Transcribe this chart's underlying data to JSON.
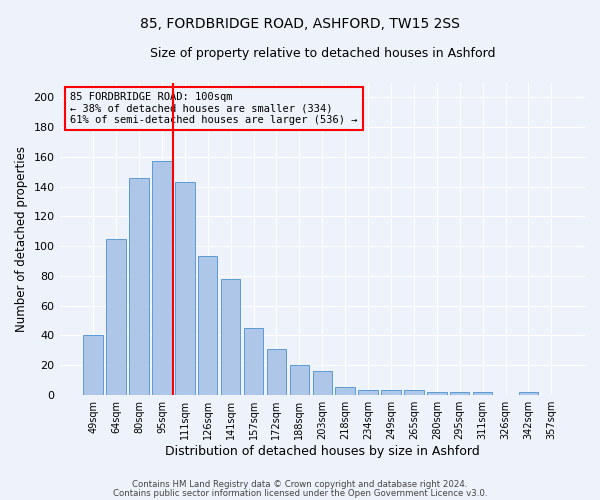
{
  "title1": "85, FORDBRIDGE ROAD, ASHFORD, TW15 2SS",
  "title2": "Size of property relative to detached houses in Ashford",
  "xlabel": "Distribution of detached houses by size in Ashford",
  "ylabel": "Number of detached properties",
  "categories": [
    "49sqm",
    "64sqm",
    "80sqm",
    "95sqm",
    "111sqm",
    "126sqm",
    "141sqm",
    "157sqm",
    "172sqm",
    "188sqm",
    "203sqm",
    "218sqm",
    "234sqm",
    "249sqm",
    "265sqm",
    "280sqm",
    "295sqm",
    "311sqm",
    "326sqm",
    "342sqm",
    "357sqm"
  ],
  "values": [
    40,
    105,
    146,
    157,
    143,
    93,
    78,
    45,
    31,
    20,
    16,
    5,
    3,
    3,
    3,
    2,
    2,
    2,
    0,
    2,
    0
  ],
  "bar_color": "#aec6e8",
  "bar_edge_color": "#5b9bd5",
  "red_line_index": 3.5,
  "annotation_box_text": "85 FORDBRIDGE ROAD: 100sqm\n← 38% of detached houses are smaller (334)\n61% of semi-detached houses are larger (536) →",
  "footer1": "Contains HM Land Registry data © Crown copyright and database right 2024.",
  "footer2": "Contains public sector information licensed under the Open Government Licence v3.0.",
  "ylim": [
    0,
    210
  ],
  "yticks": [
    0,
    20,
    40,
    60,
    80,
    100,
    120,
    140,
    160,
    180,
    200
  ],
  "bg_color": "#eef2fa",
  "grid_color": "#ffffff",
  "title1_fontsize": 10,
  "title2_fontsize": 9
}
